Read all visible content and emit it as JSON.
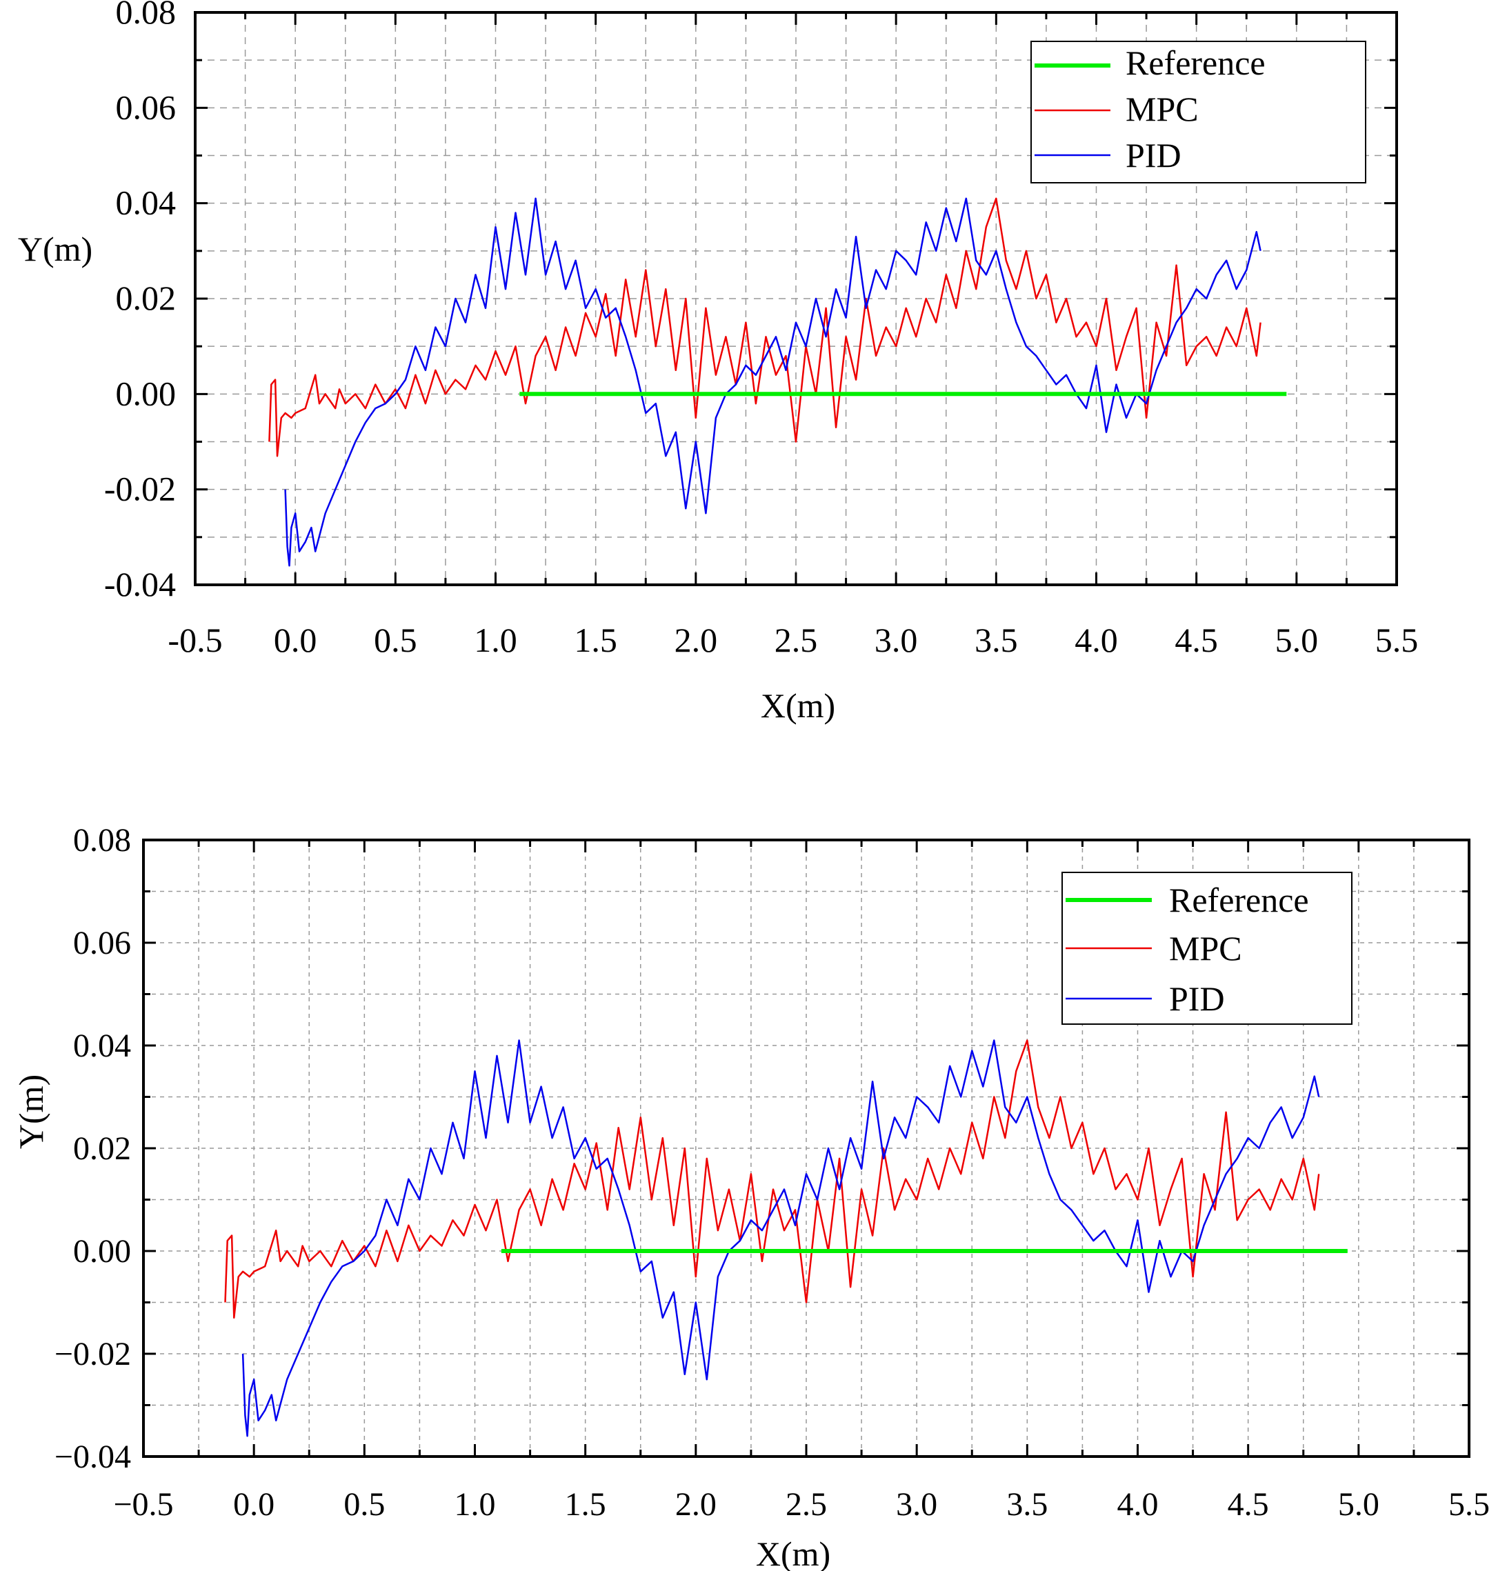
{
  "chart_data": [
    {
      "type": "line",
      "title": "",
      "xlabel": "X(m)",
      "ylabel": "Y(m)",
      "xlim": [
        -0.5,
        5.5
      ],
      "ylim": [
        -0.04,
        0.08
      ],
      "grid": true,
      "legend_position": "top-right",
      "x_tick_labels": [
        "-0.5",
        "0.0",
        "0.5",
        "1.0",
        "1.5",
        "2.0",
        "2.5",
        "3.0",
        "3.5",
        "4.0",
        "4.5",
        "5.0",
        "5.5"
      ],
      "y_tick_labels": [
        "-0.04",
        "-0.02",
        "0.00",
        "0.02",
        "0.04",
        "0.06",
        "0.08"
      ],
      "series": [
        {
          "name": "Reference",
          "color": "#00ee00",
          "x": [
            1.12,
            4.95
          ],
          "y": [
            0.0,
            0.0
          ]
        },
        {
          "name": "MPC",
          "color": "#ee0000",
          "x": [
            -0.13,
            -0.12,
            -0.1,
            -0.09,
            -0.07,
            -0.05,
            -0.02,
            0.0,
            0.05,
            0.1,
            0.12,
            0.15,
            0.2,
            0.22,
            0.25,
            0.3,
            0.35,
            0.4,
            0.45,
            0.5,
            0.55,
            0.6,
            0.65,
            0.7,
            0.75,
            0.8,
            0.85,
            0.9,
            0.95,
            1.0,
            1.05,
            1.1,
            1.15,
            1.2,
            1.25,
            1.3,
            1.35,
            1.4,
            1.45,
            1.5,
            1.55,
            1.6,
            1.65,
            1.7,
            1.75,
            1.8,
            1.85,
            1.9,
            1.95,
            2.0,
            2.05,
            2.1,
            2.15,
            2.2,
            2.25,
            2.3,
            2.35,
            2.4,
            2.45,
            2.5,
            2.55,
            2.6,
            2.65,
            2.7,
            2.75,
            2.8,
            2.85,
            2.9,
            2.95,
            3.0,
            3.05,
            3.1,
            3.15,
            3.2,
            3.25,
            3.3,
            3.35,
            3.4,
            3.45,
            3.5,
            3.55,
            3.6,
            3.65,
            3.7,
            3.75,
            3.8,
            3.85,
            3.9,
            3.95,
            4.0,
            4.05,
            4.1,
            4.15,
            4.2,
            4.25,
            4.3,
            4.35,
            4.4,
            4.45,
            4.5,
            4.55,
            4.6,
            4.65,
            4.7,
            4.75,
            4.8,
            4.82
          ],
          "y": [
            -0.01,
            0.002,
            0.003,
            -0.013,
            -0.005,
            -0.004,
            -0.005,
            -0.004,
            -0.003,
            0.004,
            -0.002,
            0.0,
            -0.003,
            0.001,
            -0.002,
            0.0,
            -0.003,
            0.002,
            -0.002,
            0.001,
            -0.003,
            0.004,
            -0.002,
            0.005,
            0.0,
            0.003,
            0.001,
            0.006,
            0.003,
            0.009,
            0.004,
            0.01,
            -0.002,
            0.008,
            0.012,
            0.005,
            0.014,
            0.008,
            0.017,
            0.012,
            0.021,
            0.008,
            0.024,
            0.012,
            0.026,
            0.01,
            0.022,
            0.005,
            0.02,
            -0.005,
            0.018,
            0.004,
            0.012,
            0.002,
            0.015,
            -0.002,
            0.012,
            0.004,
            0.008,
            -0.01,
            0.01,
            0.0,
            0.018,
            -0.007,
            0.012,
            0.003,
            0.02,
            0.008,
            0.014,
            0.01,
            0.018,
            0.012,
            0.02,
            0.015,
            0.025,
            0.018,
            0.03,
            0.022,
            0.035,
            0.041,
            0.028,
            0.022,
            0.03,
            0.02,
            0.025,
            0.015,
            0.02,
            0.012,
            0.015,
            0.01,
            0.02,
            0.005,
            0.012,
            0.018,
            -0.005,
            0.015,
            0.008,
            0.027,
            0.006,
            0.01,
            0.012,
            0.008,
            0.014,
            0.01,
            0.018,
            0.008,
            0.015
          ],
          "note": "values read approximately from the plot"
        },
        {
          "name": "PID",
          "color": "#0000ee",
          "x": [
            -0.05,
            -0.04,
            -0.03,
            -0.02,
            0.0,
            0.02,
            0.05,
            0.08,
            0.1,
            0.15,
            0.2,
            0.25,
            0.3,
            0.35,
            0.4,
            0.45,
            0.5,
            0.55,
            0.6,
            0.65,
            0.7,
            0.75,
            0.8,
            0.85,
            0.9,
            0.95,
            1.0,
            1.05,
            1.1,
            1.15,
            1.2,
            1.25,
            1.3,
            1.35,
            1.4,
            1.45,
            1.5,
            1.55,
            1.6,
            1.65,
            1.7,
            1.75,
            1.8,
            1.85,
            1.9,
            1.95,
            2.0,
            2.05,
            2.1,
            2.15,
            2.2,
            2.25,
            2.3,
            2.35,
            2.4,
            2.45,
            2.5,
            2.55,
            2.6,
            2.65,
            2.7,
            2.75,
            2.8,
            2.85,
            2.9,
            2.95,
            3.0,
            3.05,
            3.1,
            3.15,
            3.2,
            3.25,
            3.3,
            3.35,
            3.4,
            3.45,
            3.5,
            3.55,
            3.6,
            3.65,
            3.7,
            3.75,
            3.8,
            3.85,
            3.9,
            3.95,
            4.0,
            4.05,
            4.1,
            4.15,
            4.2,
            4.25,
            4.3,
            4.35,
            4.4,
            4.45,
            4.5,
            4.55,
            4.6,
            4.65,
            4.7,
            4.75,
            4.8,
            4.82
          ],
          "y": [
            -0.02,
            -0.032,
            -0.036,
            -0.028,
            -0.025,
            -0.033,
            -0.031,
            -0.028,
            -0.033,
            -0.025,
            -0.02,
            -0.015,
            -0.01,
            -0.006,
            -0.003,
            -0.002,
            0.0,
            0.003,
            0.01,
            0.005,
            0.014,
            0.01,
            0.02,
            0.015,
            0.025,
            0.018,
            0.035,
            0.022,
            0.038,
            0.025,
            0.041,
            0.025,
            0.032,
            0.022,
            0.028,
            0.018,
            0.022,
            0.016,
            0.018,
            0.012,
            0.005,
            -0.004,
            -0.002,
            -0.013,
            -0.008,
            -0.024,
            -0.01,
            -0.025,
            -0.005,
            0.0,
            0.002,
            0.006,
            0.004,
            0.008,
            0.012,
            0.005,
            0.015,
            0.01,
            0.02,
            0.012,
            0.022,
            0.016,
            0.033,
            0.018,
            0.026,
            0.022,
            0.03,
            0.028,
            0.025,
            0.036,
            0.03,
            0.039,
            0.032,
            0.041,
            0.028,
            0.025,
            0.03,
            0.022,
            0.015,
            0.01,
            0.008,
            0.005,
            0.002,
            0.004,
            0.0,
            -0.003,
            0.006,
            -0.008,
            0.002,
            -0.005,
            0.0,
            -0.002,
            0.005,
            0.01,
            0.015,
            0.018,
            0.022,
            0.02,
            0.025,
            0.028,
            0.022,
            0.026,
            0.034,
            0.03
          ],
          "note": "values read approximately from the plot"
        }
      ]
    },
    {
      "type": "line",
      "title": "",
      "xlabel": "X(m)",
      "ylabel": "Y(m)",
      "xlim": [
        -0.5,
        5.5
      ],
      "ylim": [
        -0.04,
        0.08
      ],
      "grid": true,
      "legend_position": "top-right",
      "x_tick_labels": [
        "−0.5",
        "0.0",
        "0.5",
        "1.0",
        "1.5",
        "2.0",
        "2.5",
        "3.0",
        "3.5",
        "4.0",
        "4.5",
        "5.0",
        "5.5"
      ],
      "y_tick_labels": [
        "−0.04",
        "−0.02",
        "0.00",
        "0.02",
        "0.04",
        "0.06",
        "0.08"
      ],
      "series_ref": "same series as chart 1 (identical data, re-rendered)"
    }
  ],
  "legend": {
    "reference_label": "Reference",
    "mpc_label": "MPC",
    "pid_label": "PID"
  }
}
